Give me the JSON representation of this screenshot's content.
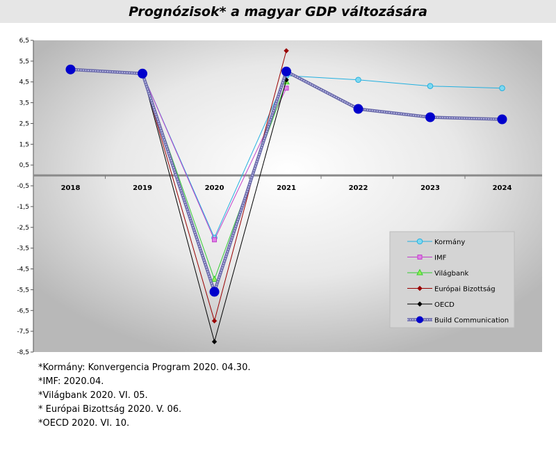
{
  "title": "Prognózisok* a magyar GDP változására",
  "chart_data": {
    "type": "line",
    "categories": [
      "2018",
      "2019",
      "2020",
      "2021",
      "2022",
      "2023",
      "2024"
    ],
    "ylim": [
      -8.5,
      6.5
    ],
    "yticks": [
      "6,5",
      "5,5",
      "4,5",
      "3,5",
      "2,5",
      "1,5",
      "0,5",
      "-0,5",
      "-1,5",
      "-2,5",
      "-3,5",
      "-4,5",
      "-5,5",
      "-6,5",
      "-7,5",
      "-8,5"
    ],
    "ytick_values": [
      6.5,
      5.5,
      4.5,
      3.5,
      2.5,
      1.5,
      0.5,
      -0.5,
      -1.5,
      -2.5,
      -3.5,
      -4.5,
      -5.5,
      -6.5,
      -7.5,
      -8.5
    ],
    "legend_position": "bottom-right",
    "grid": false,
    "series": [
      {
        "name": "Kormány",
        "color": "#22b0e0",
        "marker": "circle",
        "values": [
          null,
          4.9,
          -3.0,
          4.8,
          4.6,
          4.3,
          4.2
        ]
      },
      {
        "name": "IMF",
        "color": "#c040c8",
        "marker": "square",
        "values": [
          null,
          4.9,
          -3.1,
          4.2,
          null,
          null,
          null
        ]
      },
      {
        "name": "Világbank",
        "color": "#33cc33",
        "marker": "triangle",
        "values": [
          null,
          4.9,
          -5.0,
          4.5,
          null,
          null,
          null
        ]
      },
      {
        "name": "Európai Bizottság",
        "color": "#990000",
        "marker": "diamond",
        "values": [
          null,
          4.9,
          -7.0,
          6.0,
          null,
          null,
          null
        ]
      },
      {
        "name": "OECD",
        "color": "#000000",
        "marker": "diamond",
        "values": [
          null,
          4.9,
          -8.0,
          4.6,
          null,
          null,
          null
        ]
      },
      {
        "name": "Build Communication",
        "color": "#0000cc",
        "marker": "big-circle",
        "values": [
          5.1,
          4.9,
          -5.6,
          5.0,
          3.2,
          2.8,
          2.7
        ]
      }
    ]
  },
  "footnotes": [
    "*Kormány: Konvergencia Program 2020. 04.30.",
    "*IMF: 2020.04.",
    "*Világbank 2020. VI. 05.",
    "* Európai Bizottság 2020. V. 06.",
    "*OECD 2020. VI. 10."
  ]
}
